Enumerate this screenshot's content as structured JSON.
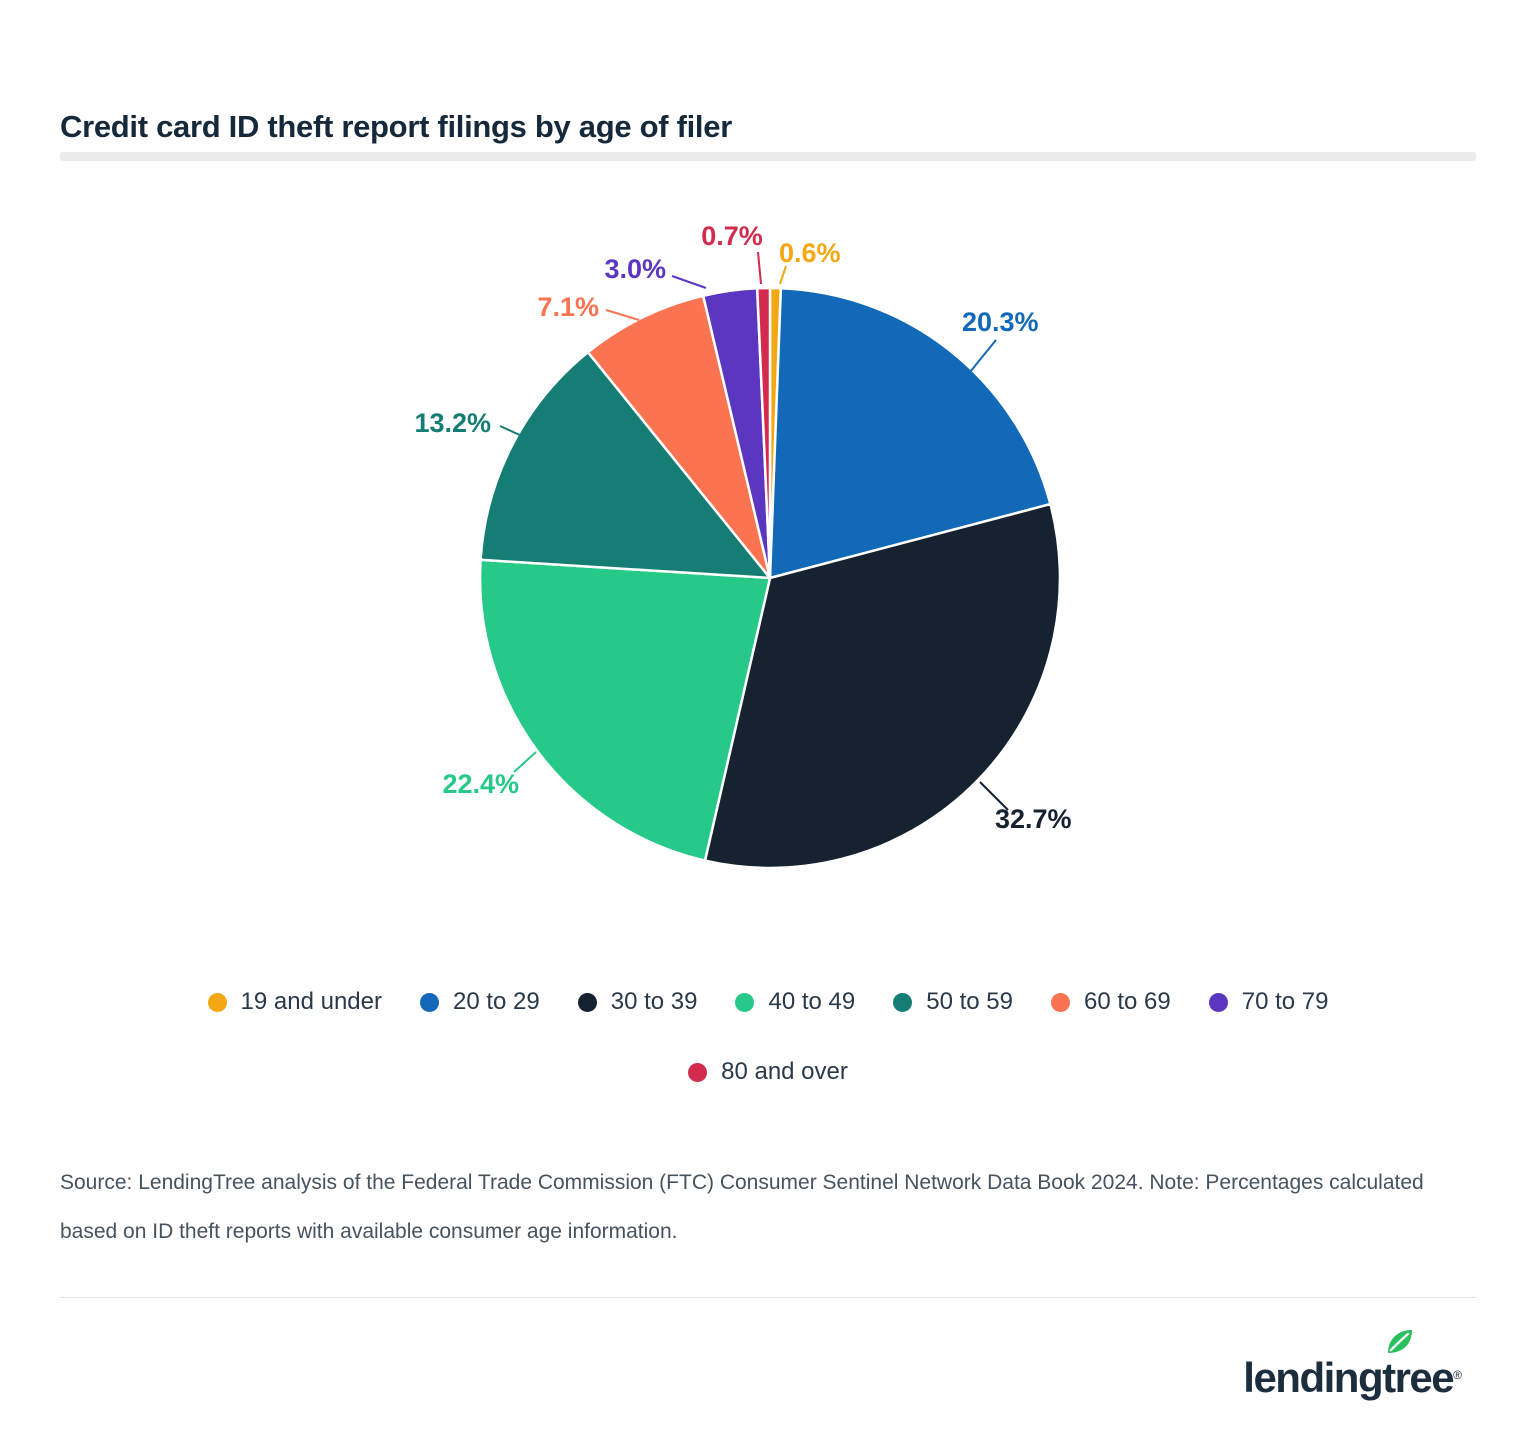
{
  "header": {
    "title": "Credit card ID theft report filings by age of filer"
  },
  "chart_data": {
    "type": "pie",
    "title": "Credit card ID theft report filings by age of filer",
    "start_angle": "12 o'clock",
    "direction": "clockwise",
    "legend_position": "bottom",
    "slices": [
      {
        "label": "19 and under",
        "value": 0.6,
        "pct_label": "0.6%",
        "color": "#f3a712"
      },
      {
        "label": "20 to 29",
        "value": 20.3,
        "pct_label": "20.3%",
        "color": "#1169b8"
      },
      {
        "label": "30 to 39",
        "value": 32.7,
        "pct_label": "32.7%",
        "color": "#16222f"
      },
      {
        "label": "40 to 49",
        "value": 22.4,
        "pct_label": "22.4%",
        "color": "#27c988"
      },
      {
        "label": "50 to 59",
        "value": 13.2,
        "pct_label": "13.2%",
        "color": "#157d74"
      },
      {
        "label": "60 to 69",
        "value": 7.1,
        "pct_label": "7.1%",
        "color": "#fb7452"
      },
      {
        "label": "70 to 79",
        "value": 3.0,
        "pct_label": "3.0%",
        "color": "#5b37c1"
      },
      {
        "label": "80 and over",
        "value": 0.7,
        "pct_label": "0.7%",
        "color": "#d22b4d"
      }
    ]
  },
  "footer": {
    "source_note": "Source: LendingTree analysis of the Federal Trade Commission (FTC) Consumer Sentinel Network Data Book 2024. Note: Percentages calculated based on ID theft reports with available consumer age information.",
    "logo_text": "lendingtree",
    "logo_reg": "®"
  }
}
